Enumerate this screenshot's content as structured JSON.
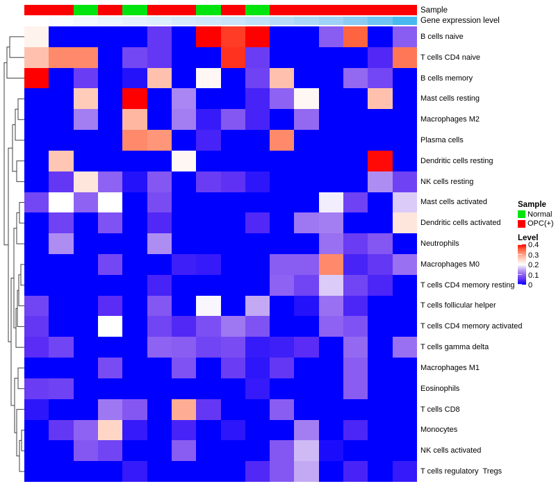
{
  "chart_data": {
    "type": "heatmap",
    "title": "",
    "rows": [
      "B cells naive",
      "T cells CD4 naive",
      "B cells memory",
      "Mast cells resting",
      "Macrophages M2",
      "Plasma cells",
      "Dendritic cells resting",
      "NK cells resting",
      "Mast cells activated",
      "Dendritic cells activated",
      "Neutrophils",
      "Macrophages M0",
      "T cells CD4 memory resting",
      "T cells follicular helper",
      "T cells CD4 memory activated",
      "T cells gamma delta",
      "Macrophages M1",
      "Eosinophils",
      "T cells CD8",
      "Monocytes",
      "NK cells activated",
      "T cells regulatory  Tregs"
    ],
    "n_columns": 16,
    "value_range": [
      0,
      0.4
    ],
    "values": [
      [
        0.215,
        0,
        0,
        0,
        0,
        0.06,
        0,
        0.4,
        0.37,
        0.4,
        0,
        0,
        0.095,
        0.35,
        0,
        0.095
      ],
      [
        0.27,
        0.32,
        0.32,
        0,
        0.075,
        0.06,
        0,
        0,
        0.375,
        0.065,
        0,
        0,
        0,
        0,
        0.045,
        0.335
      ],
      [
        0.4,
        0,
        0.065,
        0,
        0.02,
        0.27,
        0,
        0.21,
        0,
        0.07,
        0.27,
        0,
        0,
        0.105,
        0.075,
        0
      ],
      [
        0,
        0,
        0.26,
        0,
        0.4,
        0,
        0.125,
        0,
        0,
        0.04,
        0.1,
        0.21,
        0,
        0,
        0.27,
        0
      ],
      [
        0,
        0,
        0.12,
        0,
        0.28,
        0,
        0.12,
        0.03,
        0.09,
        0.04,
        0,
        0.105,
        0,
        0,
        0,
        0
      ],
      [
        0,
        0,
        0,
        0,
        0.32,
        0.31,
        0,
        0.04,
        0,
        0,
        0.32,
        0,
        0,
        0,
        0,
        0
      ],
      [
        0,
        0.265,
        0,
        0,
        0,
        0,
        0.21,
        0,
        0,
        0,
        0,
        0,
        0,
        0,
        0.395,
        0
      ],
      [
        0,
        0.06,
        0.23,
        0.1,
        0.02,
        0.09,
        0,
        0.065,
        0.055,
        0.025,
        0,
        0,
        0,
        0,
        0.13,
        0.07
      ],
      [
        0.075,
        0.2,
        0.1,
        0.2,
        0,
        0.08,
        0,
        0,
        0,
        0,
        0,
        0,
        0.19,
        0.07,
        0,
        0.17
      ],
      [
        0,
        0.07,
        0,
        0.085,
        0,
        0.045,
        0,
        0,
        0,
        0.045,
        0,
        0.115,
        0.12,
        0,
        0,
        0.23
      ],
      [
        0,
        0.13,
        0,
        0,
        0,
        0.13,
        0,
        0,
        0,
        0,
        0,
        0,
        0.11,
        0.065,
        0.09,
        0
      ],
      [
        0,
        0,
        0,
        0.075,
        0,
        0,
        0.035,
        0.03,
        0,
        0,
        0.095,
        0.095,
        0.32,
        0.04,
        0.06,
        0.11
      ],
      [
        0,
        0,
        0,
        0,
        0,
        0.04,
        0,
        0,
        0,
        0,
        0.1,
        0.072,
        0.17,
        0.072,
        0.042,
        0
      ],
      [
        0.072,
        0,
        0,
        0.05,
        0,
        0.09,
        0,
        0.195,
        0,
        0.15,
        0,
        0.02,
        0.11,
        0.042,
        0,
        0
      ],
      [
        0.06,
        0,
        0,
        0.2,
        0,
        0.072,
        0.045,
        0.082,
        0.115,
        0.085,
        0,
        0,
        0.1,
        0.085,
        0,
        0
      ],
      [
        0.05,
        0.072,
        0,
        0,
        0,
        0.1,
        0.095,
        0.072,
        0.08,
        0.03,
        0.035,
        0.05,
        0,
        0.105,
        0,
        0.11
      ],
      [
        0,
        0,
        0,
        0.08,
        0,
        0,
        0.085,
        0,
        0.065,
        0.025,
        0.06,
        0,
        0,
        0.095,
        0,
        0
      ],
      [
        0.065,
        0.07,
        0,
        0,
        0,
        0,
        0,
        0,
        0,
        0.03,
        0,
        0,
        0,
        0.095,
        0,
        0
      ],
      [
        0.025,
        0,
        0,
        0.115,
        0.09,
        0,
        0.29,
        0.06,
        0,
        0,
        0.095,
        0,
        0,
        0,
        0,
        0
      ],
      [
        0,
        0.06,
        0.1,
        0.25,
        0.03,
        0,
        0.04,
        0,
        0.025,
        0,
        0,
        0.12,
        0,
        0.042,
        0,
        0
      ],
      [
        0,
        0,
        0.09,
        0.072,
        0,
        0,
        0.095,
        0,
        0,
        0,
        0.09,
        0.16,
        0.015,
        0,
        0,
        0
      ],
      [
        0,
        0,
        0,
        0,
        0.03,
        0,
        0,
        0,
        0,
        0.045,
        0.09,
        0.15,
        0,
        0.04,
        0,
        0.03
      ]
    ],
    "colormap_waypoints": [
      [
        0.0,
        "#0000FF"
      ],
      [
        0.05,
        "#5A2CF5"
      ],
      [
        0.1,
        "#8E62F2"
      ],
      [
        0.15,
        "#C3A9F3"
      ],
      [
        0.2,
        "#FFFFFF"
      ],
      [
        0.25,
        "#FFD6C6"
      ],
      [
        0.3,
        "#FFA288"
      ],
      [
        0.35,
        "#FF6440"
      ],
      [
        0.4,
        "#FF0000"
      ]
    ],
    "column_annotations": {
      "sample_label": "Sample",
      "gene_label": "Gene expression level",
      "sample_groups": [
        "OPC(+)",
        "OPC(+)",
        "Normal",
        "OPC(+)",
        "Normal",
        "OPC(+)",
        "OPC(+)",
        "Normal",
        "OPC(+)",
        "Normal",
        "OPC(+)",
        "OPC(+)",
        "OPC(+)",
        "OPC(+)",
        "OPC(+)",
        "OPC(+)"
      ],
      "sample_group_colors": {
        "Normal": "#00E40E",
        "OPC(+)": "#FC0000"
      },
      "gene_expression_colors": [
        "#FFFFFF",
        "#F9FCFE",
        "#F2F8FE",
        "#EBF5FD",
        "#E4F1FC",
        "#DDEEFC",
        "#D6EAFB",
        "#CFE7FA",
        "#C8E3FA",
        "#C0E0F9",
        "#B8DCF8",
        "#ACD8F7",
        "#9ED2F6",
        "#8BCBF4",
        "#6FC3F2",
        "#48B9EF"
      ]
    },
    "legend": {
      "sample_title": "Sample",
      "sample_items": [
        {
          "label": "Normal",
          "color": "#00E40E"
        },
        {
          "label": "OPC(+)",
          "color": "#FC0000"
        }
      ],
      "level_title": "Level",
      "level_ticks": [
        "0.4",
        "0.3",
        "0.2",
        "0.1",
        "0"
      ]
    },
    "dendrogram_merges": [
      {
        "id": "m1",
        "a": "r0",
        "b": "r1",
        "x": 14
      },
      {
        "id": "m2",
        "a": "m1",
        "b": "r2",
        "x": 10
      },
      {
        "id": "m3",
        "a": "r3",
        "b": "r4",
        "x": 26
      },
      {
        "id": "m4",
        "a": "m3",
        "b": "r5",
        "x": 22
      },
      {
        "id": "m5",
        "a": "r6",
        "b": "r7",
        "x": 24
      },
      {
        "id": "m6",
        "a": "m4",
        "b": "m5",
        "x": 18
      },
      {
        "id": "m7",
        "a": "r8",
        "b": "r9",
        "x": 28
      },
      {
        "id": "m8",
        "a": "m7",
        "b": "r10",
        "x": 24
      },
      {
        "id": "m9",
        "a": "r11",
        "b": "r12",
        "x": 30
      },
      {
        "id": "m10",
        "a": "m9",
        "b": "r13",
        "x": 27
      },
      {
        "id": "m11",
        "a": "m10",
        "b": "r14",
        "x": 25
      },
      {
        "id": "m12",
        "a": "m11",
        "b": "r15",
        "x": 23
      },
      {
        "id": "m13",
        "a": "m8",
        "b": "m12",
        "x": 20
      },
      {
        "id": "m14",
        "a": "r16",
        "b": "r17",
        "x": 26
      },
      {
        "id": "m15",
        "a": "r19",
        "b": "r20",
        "x": 31
      },
      {
        "id": "m16",
        "a": "m15",
        "b": "r21",
        "x": 28
      },
      {
        "id": "m17",
        "a": "r18",
        "b": "m16",
        "x": 24
      },
      {
        "id": "m18",
        "a": "m14",
        "b": "m17",
        "x": 21
      },
      {
        "id": "m19",
        "a": "m13",
        "b": "m18",
        "x": 16
      },
      {
        "id": "m20",
        "a": "m6",
        "b": "m19",
        "x": 12
      },
      {
        "id": "m21",
        "a": "m2",
        "b": "m20",
        "x": 6
      }
    ]
  }
}
